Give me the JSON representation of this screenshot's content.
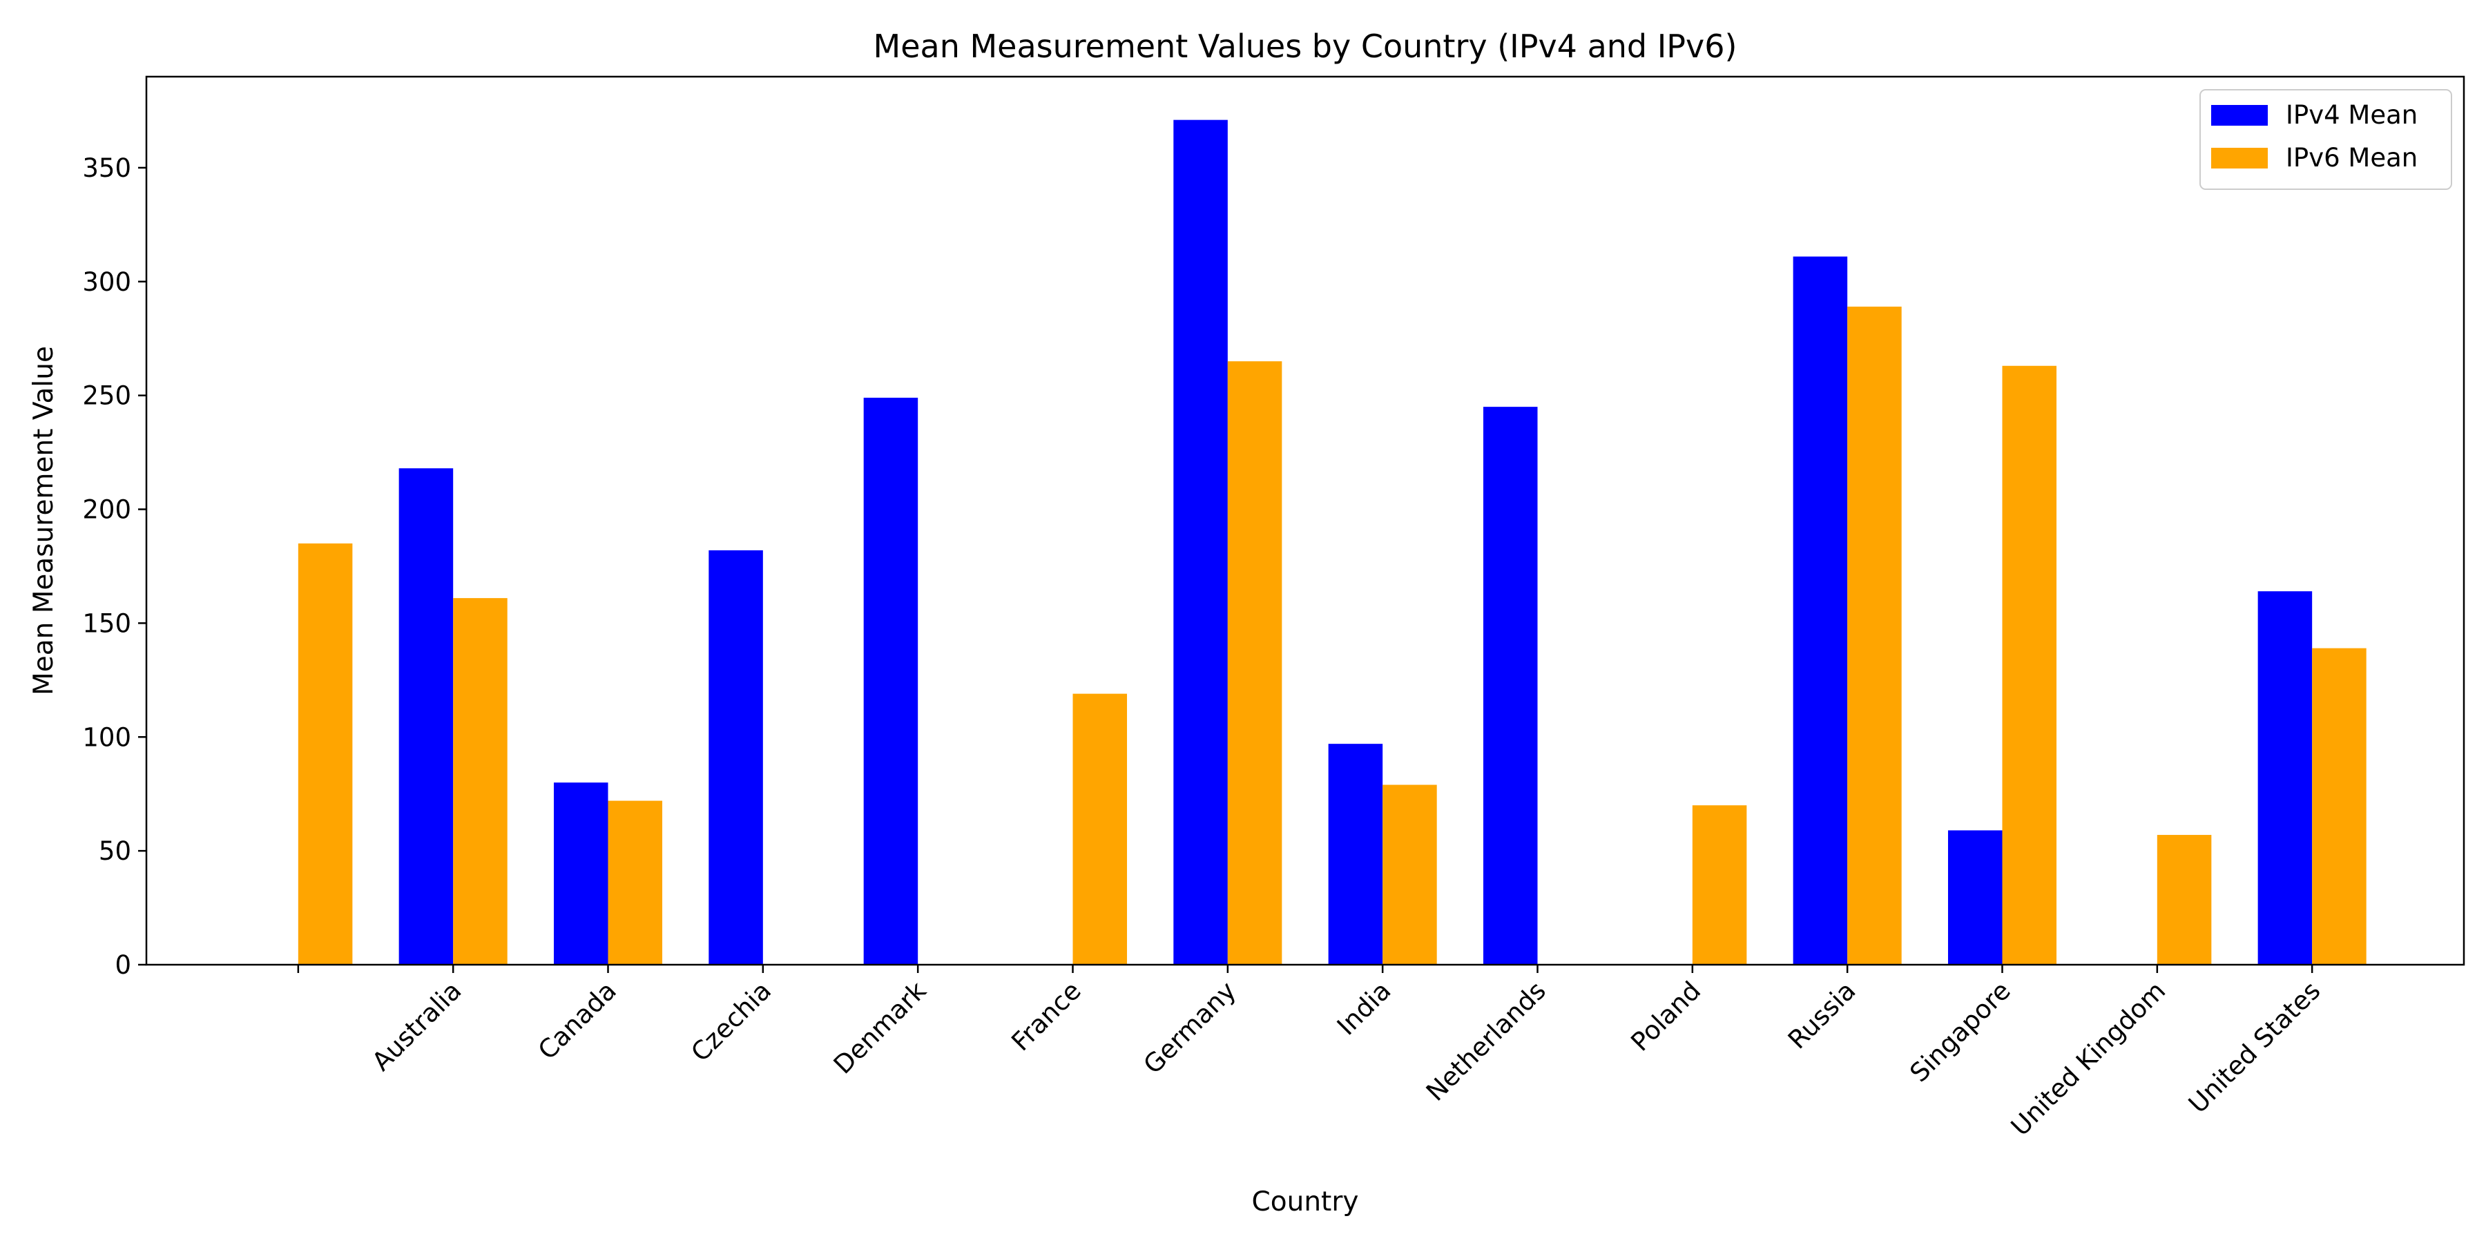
{
  "chart_data": {
    "type": "bar",
    "title": "Mean Measurement Values by Country (IPv4 and IPv6)",
    "xlabel": "Country",
    "ylabel": "Mean Measurement Value",
    "categories": [
      "",
      "Australia",
      "Canada",
      "Czechia",
      "Denmark",
      "France",
      "Germany",
      "India",
      "Netherlands",
      "Poland",
      "Russia",
      "Singapore",
      "United Kingdom",
      "United States"
    ],
    "series": [
      {
        "name": "IPv4 Mean",
        "color": "#0000ff",
        "values": [
          null,
          218,
          80,
          182,
          249,
          null,
          371,
          97,
          245,
          null,
          311,
          59,
          null,
          164
        ]
      },
      {
        "name": "IPv6 Mean",
        "color": "#ffa500",
        "values": [
          185,
          161,
          72,
          null,
          null,
          119,
          265,
          79,
          null,
          70,
          289,
          263,
          57,
          139
        ]
      }
    ],
    "ylim": [
      0,
      390
    ],
    "yticks": [
      0,
      50,
      100,
      150,
      200,
      250,
      300,
      350
    ],
    "xtick_rotation_deg": 45,
    "legend": "top-right",
    "grid": false
  }
}
